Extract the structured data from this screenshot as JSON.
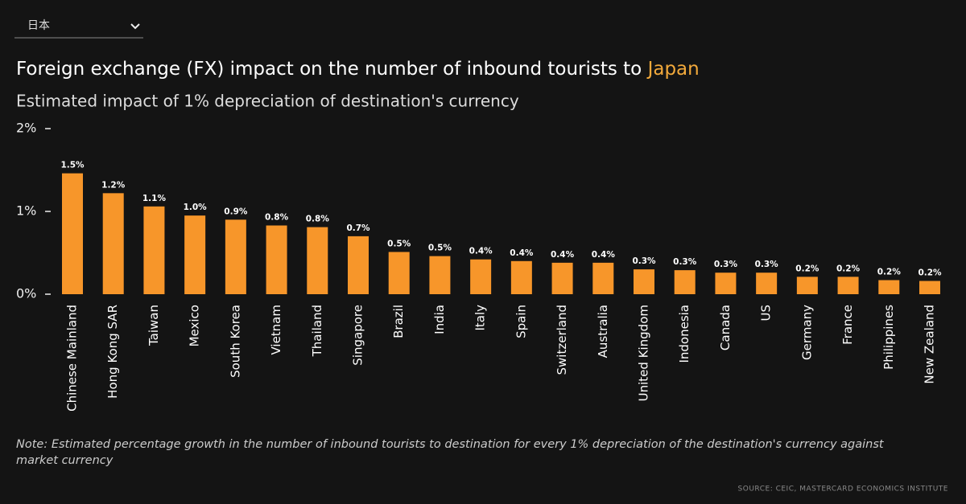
{
  "dropdown": {
    "selected": "日本"
  },
  "chart_data": {
    "type": "bar",
    "title": {
      "text": "Foreign exchange (FX) impact on the number of inbound tourists to",
      "highlight": "Japan"
    },
    "subtitle": "Estimated impact of 1% depreciation of destination's currency",
    "categories": [
      "Chinese Mainland",
      "Hong Kong SAR",
      "Taiwan",
      "Mexico",
      "South Korea",
      "Vietnam",
      "Thailand",
      "Singapore",
      "Brazil",
      "India",
      "Italy",
      "Spain",
      "Switzerland",
      "Australia",
      "United Kingdom",
      "Indonesia",
      "Canada",
      "US",
      "Germany",
      "France",
      "Philippines",
      "New Zealand"
    ],
    "values": [
      1.46,
      1.22,
      1.06,
      0.95,
      0.9,
      0.83,
      0.81,
      0.7,
      0.51,
      0.46,
      0.42,
      0.4,
      0.38,
      0.38,
      0.3,
      0.29,
      0.26,
      0.26,
      0.21,
      0.21,
      0.17,
      0.16
    ],
    "value_labels": [
      "1.5%",
      "1.2%",
      "1.1%",
      "1.0%",
      "0.9%",
      "0.8%",
      "0.8%",
      "0.7%",
      "0.5%",
      "0.5%",
      "0.4%",
      "0.4%",
      "0.4%",
      "0.4%",
      "0.3%",
      "0.3%",
      "0.3%",
      "0.3%",
      "0.2%",
      "0.2%",
      "0.2%",
      "0.2%"
    ],
    "color": "#f7962a",
    "ylim": [
      0,
      2
    ],
    "yticks": [
      {
        "value": 0,
        "label": "0%"
      },
      {
        "value": 1,
        "label": "1%"
      },
      {
        "value": 2,
        "label": "2%"
      }
    ],
    "grid": false,
    "note": [
      "Note: Estimated percentage growth in the number of inbound tourists to destination for every 1% depreciation of the destination's currency against",
      "market currency"
    ],
    "source": "SOURCE: CEIC, MASTERCARD ECONOMICS INSTITUTE"
  }
}
